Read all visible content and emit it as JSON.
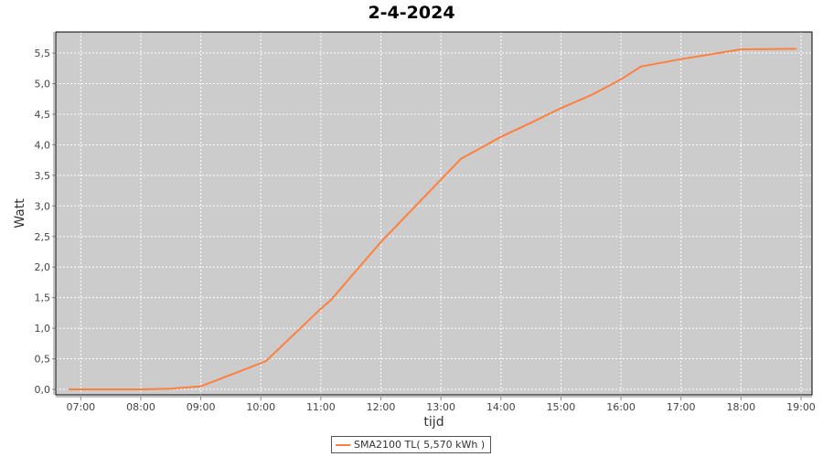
{
  "chart_data": {
    "type": "line",
    "title": "2-4-2024",
    "xlabel": "tijd",
    "ylabel": "Watt",
    "xlim": [
      "06:35",
      "19:11"
    ],
    "ylim": [
      0,
      5.8
    ],
    "x_ticks": [
      "07:00",
      "08:00",
      "09:00",
      "10:00",
      "11:00",
      "12:00",
      "13:00",
      "14:00",
      "15:00",
      "16:00",
      "17:00",
      "18:00",
      "19:00"
    ],
    "y_ticks": [
      "0,0",
      "0,5",
      "1,0",
      "1,5",
      "2,0",
      "2,5",
      "3,0",
      "3,5",
      "4,0",
      "4,5",
      "5,0",
      "5,5"
    ],
    "grid": true,
    "legend_position": "bottom",
    "colors": {
      "series": "#ff7f3f",
      "plot_bg": "#cccccc",
      "grid": "#ffffff"
    },
    "series": [
      {
        "name": "SMA2100 TL( 5,570 kWh )",
        "x": [
          "06:48",
          "08:00",
          "08:30",
          "09:00",
          "10:05",
          "11:00",
          "11:10",
          "12:00",
          "13:20",
          "14:00",
          "14:30",
          "15:00",
          "15:30",
          "16:00",
          "16:20",
          "17:00",
          "17:30",
          "18:00",
          "18:55"
        ],
        "values": [
          0.0,
          0.0,
          0.01,
          0.05,
          0.46,
          1.32,
          1.46,
          2.41,
          3.77,
          4.13,
          4.36,
          4.6,
          4.81,
          5.07,
          5.28,
          5.4,
          5.48,
          5.56,
          5.57
        ]
      }
    ]
  }
}
